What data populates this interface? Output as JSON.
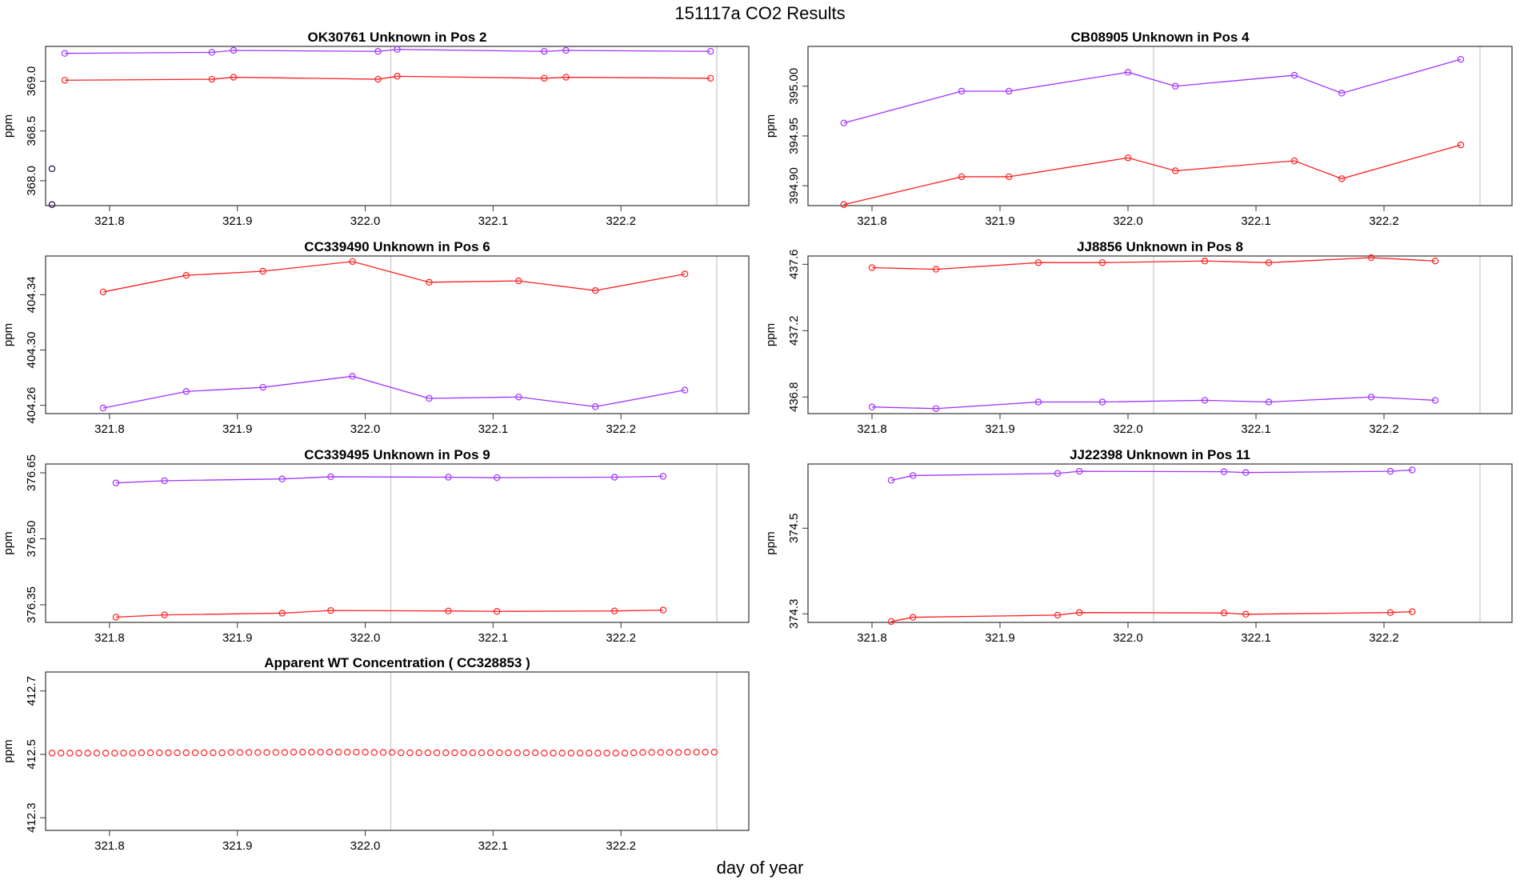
{
  "figure": {
    "title": "151117a  CO2 Results",
    "xlabel": "day of year",
    "colors": {
      "series_a": "#a033ff",
      "series_b": "#ff2020",
      "marker_dark": "#2a0a4a",
      "vline": "#c8c8c8"
    }
  },
  "chart_data": [
    {
      "type": "line",
      "title": "OK30761    Unknown in Pos 2",
      "ylabel": "ppm",
      "xlim": [
        321.75,
        322.3
      ],
      "ylim": [
        367.75,
        369.35
      ],
      "xticks": [
        "321.8",
        "321.9",
        "322.0",
        "322.1",
        "322.2"
      ],
      "yticks": [
        "368.0",
        "368.5",
        "369.0"
      ],
      "vlines": [
        322.02,
        322.275
      ],
      "series": [
        {
          "color": "#a033ff",
          "x": [
            321.765,
            321.88,
            321.897,
            322.01,
            322.025,
            322.14,
            322.157,
            322.27
          ],
          "y": [
            369.28,
            369.29,
            369.31,
            369.3,
            369.32,
            369.3,
            369.31,
            369.3
          ]
        },
        {
          "color": "#ff2020",
          "x": [
            321.765,
            321.88,
            321.897,
            322.01,
            322.025,
            322.14,
            322.157,
            322.27
          ],
          "y": [
            369.01,
            369.02,
            369.04,
            369.02,
            369.05,
            369.03,
            369.04,
            369.03
          ]
        }
      ],
      "points": [
        {
          "color": "#2a0a4a",
          "x": [
            321.755,
            321.755
          ],
          "y": [
            368.12,
            367.76
          ]
        }
      ]
    },
    {
      "type": "line",
      "title": "CB08905    Unknown in Pos 4",
      "ylabel": "ppm",
      "xlim": [
        321.75,
        322.3
      ],
      "ylim": [
        394.88,
        395.04
      ],
      "xticks": [
        "321.8",
        "321.9",
        "322.0",
        "322.1",
        "322.2"
      ],
      "yticks": [
        "394.90",
        "394.95",
        "395.00"
      ],
      "vlines": [
        322.02,
        322.275
      ],
      "series": [
        {
          "color": "#a033ff",
          "x": [
            321.778,
            321.87,
            321.907,
            322.0,
            322.037,
            322.13,
            322.167,
            322.26
          ],
          "y": [
            394.963,
            394.995,
            394.995,
            395.014,
            395.0,
            395.011,
            394.993,
            395.027
          ]
        },
        {
          "color": "#ff2020",
          "x": [
            321.778,
            321.87,
            321.907,
            322.0,
            322.037,
            322.13,
            322.167,
            322.26
          ],
          "y": [
            394.881,
            394.909,
            394.909,
            394.928,
            394.915,
            394.925,
            394.907,
            394.941
          ]
        }
      ]
    },
    {
      "type": "line",
      "title": "CC339490    Unknown in Pos 6",
      "ylabel": "ppm",
      "xlim": [
        321.75,
        322.3
      ],
      "ylim": [
        404.254,
        404.368
      ],
      "xticks": [
        "321.8",
        "321.9",
        "322.0",
        "322.1",
        "322.2"
      ],
      "yticks": [
        "404.26",
        "404.30",
        "404.34"
      ],
      "vlines": [
        322.02,
        322.275
      ],
      "series": [
        {
          "color": "#ff2020",
          "x": [
            321.795,
            321.86,
            321.92,
            321.99,
            322.05,
            322.12,
            322.18,
            322.25
          ],
          "y": [
            404.342,
            404.354,
            404.357,
            404.364,
            404.349,
            404.35,
            404.343,
            404.355
          ]
        },
        {
          "color": "#a033ff",
          "x": [
            321.795,
            321.86,
            321.92,
            321.99,
            322.05,
            322.12,
            322.18,
            322.25
          ],
          "y": [
            404.258,
            404.27,
            404.273,
            404.281,
            404.265,
            404.266,
            404.259,
            404.271
          ]
        }
      ]
    },
    {
      "type": "line",
      "title": "JJ8856    Unknown in Pos 8",
      "ylabel": "ppm",
      "xlim": [
        321.75,
        322.3
      ],
      "ylim": [
        436.7,
        437.65
      ],
      "xticks": [
        "321.8",
        "321.9",
        "322.0",
        "322.1",
        "322.2"
      ],
      "yticks": [
        "436.8",
        "437.2",
        "437.6"
      ],
      "vlines": [
        322.02,
        322.275
      ],
      "series": [
        {
          "color": "#ff2020",
          "x": [
            321.8,
            321.85,
            321.93,
            321.98,
            322.06,
            322.11,
            322.19,
            322.24
          ],
          "y": [
            437.58,
            437.57,
            437.61,
            437.61,
            437.62,
            437.61,
            437.64,
            437.62
          ]
        },
        {
          "color": "#a033ff",
          "x": [
            321.8,
            321.85,
            321.93,
            321.98,
            322.06,
            322.11,
            322.19,
            322.24
          ],
          "y": [
            436.74,
            436.73,
            436.77,
            436.77,
            436.78,
            436.77,
            436.8,
            436.78
          ]
        }
      ]
    },
    {
      "type": "line",
      "title": "CC339495    Unknown in Pos 9",
      "ylabel": "ppm",
      "xlim": [
        321.75,
        322.3
      ],
      "ylim": [
        376.31,
        376.67
      ],
      "xticks": [
        "321.8",
        "321.9",
        "322.0",
        "322.1",
        "322.2"
      ],
      "yticks": [
        "376.35",
        "376.50",
        "376.65"
      ],
      "vlines": [
        322.02,
        322.275
      ],
      "series": [
        {
          "color": "#a033ff",
          "x": [
            321.805,
            321.843,
            321.935,
            321.973,
            322.065,
            322.103,
            322.195,
            322.233
          ],
          "y": [
            376.627,
            376.632,
            376.636,
            376.641,
            376.64,
            376.639,
            376.64,
            376.642
          ]
        },
        {
          "color": "#ff2020",
          "x": [
            321.805,
            321.843,
            321.935,
            321.973,
            322.065,
            322.103,
            322.195,
            322.233
          ],
          "y": [
            376.322,
            376.327,
            376.331,
            376.337,
            376.336,
            376.335,
            376.336,
            376.338
          ]
        }
      ]
    },
    {
      "type": "line",
      "title": "JJ22398    Unknown in Pos 11",
      "ylabel": "ppm",
      "xlim": [
        321.75,
        322.3
      ],
      "ylim": [
        374.28,
        374.65
      ],
      "xticks": [
        "321.8",
        "321.9",
        "322.0",
        "322.1",
        "322.2"
      ],
      "yticks": [
        "374.3",
        "374.5"
      ],
      "vlines": [
        322.02,
        322.275
      ],
      "series": [
        {
          "color": "#a033ff",
          "x": [
            321.815,
            321.832,
            321.945,
            321.962,
            322.075,
            322.092,
            322.205,
            322.222
          ],
          "y": [
            374.612,
            374.623,
            374.628,
            374.633,
            374.632,
            374.63,
            374.633,
            374.636
          ]
        },
        {
          "color": "#ff2020",
          "x": [
            321.815,
            321.832,
            321.945,
            321.962,
            322.075,
            322.092,
            322.205,
            322.222
          ],
          "y": [
            374.282,
            374.292,
            374.297,
            374.303,
            374.302,
            374.299,
            374.303,
            374.305
          ]
        }
      ]
    },
    {
      "type": "scatter",
      "title": "Apparent WT Concentration ( CC328853 )",
      "ylabel": "ppm",
      "xlim": [
        321.75,
        322.3
      ],
      "ylim": [
        412.26,
        412.76
      ],
      "xticks": [
        "321.8",
        "321.9",
        "322.0",
        "322.1",
        "322.2"
      ],
      "yticks": [
        "412.3",
        "412.5",
        "412.7"
      ],
      "vlines": [
        322.02,
        322.275
      ],
      "series": [
        {
          "color": "#ff2020",
          "x": [
            321.755,
            321.762,
            321.769,
            321.776,
            321.783,
            321.79,
            321.797,
            321.804,
            321.811,
            321.818,
            321.825,
            321.832,
            321.839,
            321.846,
            321.853,
            321.86,
            321.867,
            321.874,
            321.881,
            321.888,
            321.895,
            321.902,
            321.909,
            321.916,
            321.923,
            321.93,
            321.937,
            321.944,
            321.951,
            321.958,
            321.965,
            321.972,
            321.979,
            321.986,
            321.993,
            322.0,
            322.007,
            322.014,
            322.021,
            322.028,
            322.035,
            322.042,
            322.049,
            322.056,
            322.063,
            322.07,
            322.077,
            322.084,
            322.091,
            322.098,
            322.105,
            322.112,
            322.119,
            322.126,
            322.133,
            322.14,
            322.147,
            322.154,
            322.161,
            322.168,
            322.175,
            322.182,
            322.189,
            322.196,
            322.203,
            322.21,
            322.217,
            322.224,
            322.231,
            322.238,
            322.245,
            322.252,
            322.259,
            322.266,
            322.273
          ],
          "y": [
            412.504,
            412.504,
            412.504,
            412.504,
            412.504,
            412.504,
            412.504,
            412.504,
            412.504,
            412.504,
            412.505,
            412.505,
            412.505,
            412.505,
            412.505,
            412.505,
            412.505,
            412.505,
            412.505,
            412.505,
            412.506,
            412.506,
            412.506,
            412.506,
            412.506,
            412.506,
            412.506,
            412.507,
            412.507,
            412.507,
            412.507,
            412.507,
            412.507,
            412.507,
            412.507,
            412.507,
            412.506,
            412.506,
            412.506,
            412.505,
            412.505,
            412.505,
            412.505,
            412.505,
            412.505,
            412.505,
            412.505,
            412.505,
            412.505,
            412.505,
            412.505,
            412.505,
            412.505,
            412.505,
            412.505,
            412.504,
            412.504,
            412.504,
            412.504,
            412.504,
            412.504,
            412.504,
            412.504,
            412.504,
            412.504,
            412.505,
            412.506,
            412.506,
            412.506,
            412.506,
            412.506,
            412.507,
            412.507,
            412.507,
            412.507
          ]
        }
      ]
    }
  ]
}
